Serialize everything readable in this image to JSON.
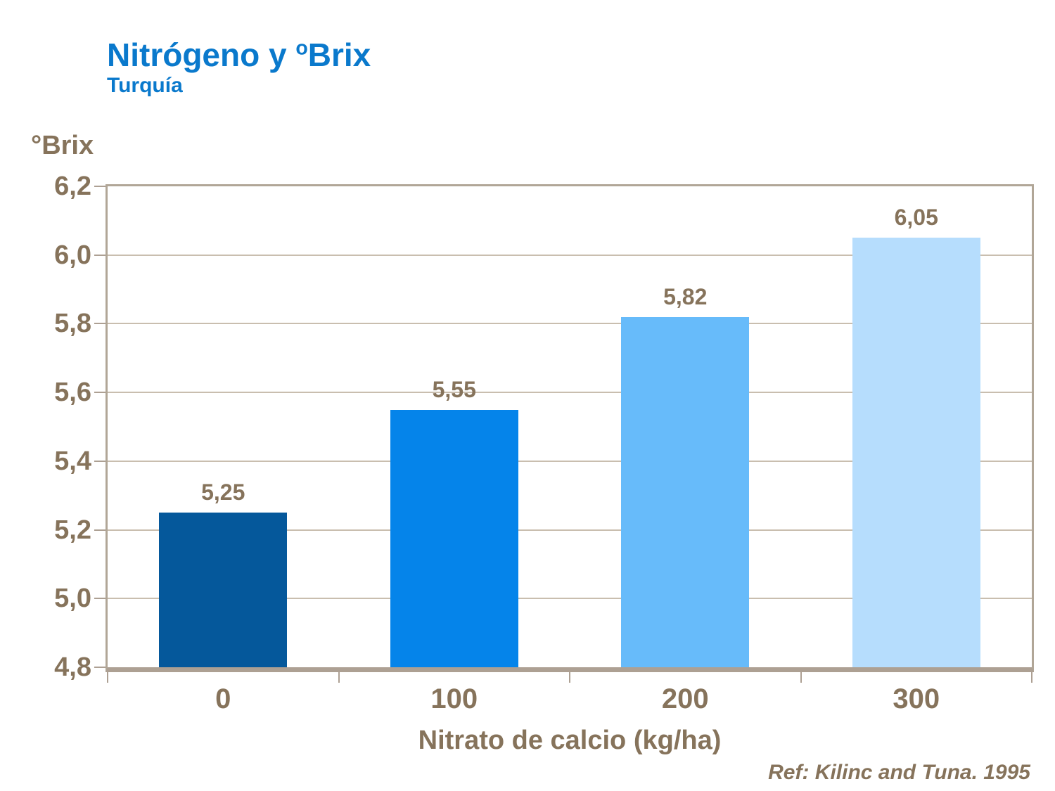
{
  "header": {
    "title_prefix": "Nitrógeno y ",
    "title_sup": "o",
    "title_suffix": "Brix",
    "subtitle": "Turquía",
    "title_color": "#0A79CC"
  },
  "footer": {
    "reference": "Ref: Kilinc and Tuna. 1995"
  },
  "chart_data": {
    "type": "bar",
    "title": "Nitrógeno y ºBrix",
    "subtitle": "Turquía",
    "categories": [
      "0",
      "100",
      "200",
      "300"
    ],
    "values": [
      5.25,
      5.55,
      5.82,
      6.05
    ],
    "value_labels": [
      "5,25",
      "5,55",
      "5,82",
      "6,05"
    ],
    "bar_colors": [
      "#05589B",
      "#0584EA",
      "#67BBFA",
      "#B6DDFD"
    ],
    "xlabel": "Nitrato de calcio (kg/ha)",
    "ylabel": "°Brix",
    "ylim": [
      4.8,
      6.2
    ],
    "ytick_values": [
      4.8,
      5.0,
      5.2,
      5.4,
      5.6,
      5.8,
      6.0,
      6.2
    ],
    "ytick_labels": [
      "4,8",
      "5,0",
      "5,2",
      "5,4",
      "5,6",
      "5,8",
      "6,0",
      "6,2"
    ],
    "grid": "horizontal",
    "legend": "none",
    "text_color": "#86735B",
    "axis_color": "#ADA093",
    "gridline_color": "#C9BEAF"
  }
}
